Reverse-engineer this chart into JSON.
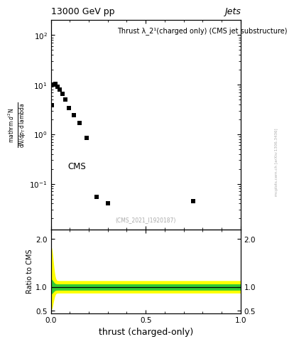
{
  "title_left": "13000 GeV pp",
  "title_right": "Jets",
  "plot_title": "Thrust λ_2¹(charged only) (CMS jet substructure)",
  "xlabel": "thrust (charged-only)",
  "ylabel_main_line1": "mathrm d²N",
  "ylabel_main_line2": "――――――――――――――――",
  "ylabel_main_line3": "mathrm d N / mathrm d pₜ mathrm d lambda",
  "ylabel_main": "1/Γ d²N/d p_T d lambda",
  "ylabel_ratio": "Ratio to CMS",
  "cms_label": "CMS",
  "ref_label": "(CMS_2021_I1920187)",
  "watermark": "mcplots.cern.ch [arXiv:1306.3436]",
  "main_scatter_x": [
    0.005,
    0.016,
    0.025,
    0.035,
    0.048,
    0.062,
    0.078,
    0.097,
    0.12,
    0.15,
    0.19,
    0.24,
    0.3,
    0.75
  ],
  "main_scatter_y": [
    3.8,
    10.1,
    10.3,
    9.2,
    8.0,
    6.5,
    5.0,
    3.4,
    2.4,
    1.7,
    0.85,
    0.055,
    0.04,
    0.045
  ],
  "ylim_main": [
    0.012,
    200
  ],
  "xlim": [
    0,
    1
  ],
  "ratio_line_y": 1.0,
  "ylim_ratio": [
    0.45,
    2.2
  ],
  "ratio_yticks": [
    0.5,
    1.0,
    2.0
  ],
  "background_color": "#ffffff",
  "scatter_color": "#000000",
  "band_yellow_color": "#ffff00",
  "band_green_color": "#33cc33",
  "ratio_line_color": "#000000"
}
